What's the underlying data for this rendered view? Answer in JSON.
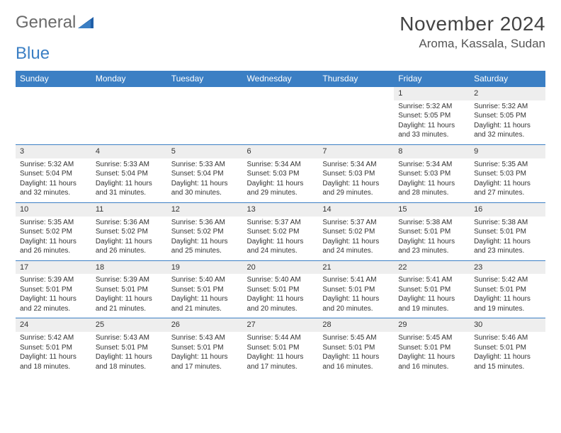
{
  "logo": {
    "word1": "General",
    "word2": "Blue"
  },
  "month_title": "November 2024",
  "location": "Aroma, Kassala, Sudan",
  "colors": {
    "header_bg": "#3b7fc4",
    "header_fg": "#ffffff",
    "daynum_bg": "#eeeeee",
    "border": "#3b7fc4",
    "text": "#333333",
    "logo_gray": "#6a6a6a",
    "logo_blue": "#3b7fc4"
  },
  "day_headers": [
    "Sunday",
    "Monday",
    "Tuesday",
    "Wednesday",
    "Thursday",
    "Friday",
    "Saturday"
  ],
  "weeks": [
    [
      {
        "n": "",
        "t": ""
      },
      {
        "n": "",
        "t": ""
      },
      {
        "n": "",
        "t": ""
      },
      {
        "n": "",
        "t": ""
      },
      {
        "n": "",
        "t": ""
      },
      {
        "n": "1",
        "t": "Sunrise: 5:32 AM\nSunset: 5:05 PM\nDaylight: 11 hours and 33 minutes."
      },
      {
        "n": "2",
        "t": "Sunrise: 5:32 AM\nSunset: 5:05 PM\nDaylight: 11 hours and 32 minutes."
      }
    ],
    [
      {
        "n": "3",
        "t": "Sunrise: 5:32 AM\nSunset: 5:04 PM\nDaylight: 11 hours and 32 minutes."
      },
      {
        "n": "4",
        "t": "Sunrise: 5:33 AM\nSunset: 5:04 PM\nDaylight: 11 hours and 31 minutes."
      },
      {
        "n": "5",
        "t": "Sunrise: 5:33 AM\nSunset: 5:04 PM\nDaylight: 11 hours and 30 minutes."
      },
      {
        "n": "6",
        "t": "Sunrise: 5:34 AM\nSunset: 5:03 PM\nDaylight: 11 hours and 29 minutes."
      },
      {
        "n": "7",
        "t": "Sunrise: 5:34 AM\nSunset: 5:03 PM\nDaylight: 11 hours and 29 minutes."
      },
      {
        "n": "8",
        "t": "Sunrise: 5:34 AM\nSunset: 5:03 PM\nDaylight: 11 hours and 28 minutes."
      },
      {
        "n": "9",
        "t": "Sunrise: 5:35 AM\nSunset: 5:03 PM\nDaylight: 11 hours and 27 minutes."
      }
    ],
    [
      {
        "n": "10",
        "t": "Sunrise: 5:35 AM\nSunset: 5:02 PM\nDaylight: 11 hours and 26 minutes."
      },
      {
        "n": "11",
        "t": "Sunrise: 5:36 AM\nSunset: 5:02 PM\nDaylight: 11 hours and 26 minutes."
      },
      {
        "n": "12",
        "t": "Sunrise: 5:36 AM\nSunset: 5:02 PM\nDaylight: 11 hours and 25 minutes."
      },
      {
        "n": "13",
        "t": "Sunrise: 5:37 AM\nSunset: 5:02 PM\nDaylight: 11 hours and 24 minutes."
      },
      {
        "n": "14",
        "t": "Sunrise: 5:37 AM\nSunset: 5:02 PM\nDaylight: 11 hours and 24 minutes."
      },
      {
        "n": "15",
        "t": "Sunrise: 5:38 AM\nSunset: 5:01 PM\nDaylight: 11 hours and 23 minutes."
      },
      {
        "n": "16",
        "t": "Sunrise: 5:38 AM\nSunset: 5:01 PM\nDaylight: 11 hours and 23 minutes."
      }
    ],
    [
      {
        "n": "17",
        "t": "Sunrise: 5:39 AM\nSunset: 5:01 PM\nDaylight: 11 hours and 22 minutes."
      },
      {
        "n": "18",
        "t": "Sunrise: 5:39 AM\nSunset: 5:01 PM\nDaylight: 11 hours and 21 minutes."
      },
      {
        "n": "19",
        "t": "Sunrise: 5:40 AM\nSunset: 5:01 PM\nDaylight: 11 hours and 21 minutes."
      },
      {
        "n": "20",
        "t": "Sunrise: 5:40 AM\nSunset: 5:01 PM\nDaylight: 11 hours and 20 minutes."
      },
      {
        "n": "21",
        "t": "Sunrise: 5:41 AM\nSunset: 5:01 PM\nDaylight: 11 hours and 20 minutes."
      },
      {
        "n": "22",
        "t": "Sunrise: 5:41 AM\nSunset: 5:01 PM\nDaylight: 11 hours and 19 minutes."
      },
      {
        "n": "23",
        "t": "Sunrise: 5:42 AM\nSunset: 5:01 PM\nDaylight: 11 hours and 19 minutes."
      }
    ],
    [
      {
        "n": "24",
        "t": "Sunrise: 5:42 AM\nSunset: 5:01 PM\nDaylight: 11 hours and 18 minutes."
      },
      {
        "n": "25",
        "t": "Sunrise: 5:43 AM\nSunset: 5:01 PM\nDaylight: 11 hours and 18 minutes."
      },
      {
        "n": "26",
        "t": "Sunrise: 5:43 AM\nSunset: 5:01 PM\nDaylight: 11 hours and 17 minutes."
      },
      {
        "n": "27",
        "t": "Sunrise: 5:44 AM\nSunset: 5:01 PM\nDaylight: 11 hours and 17 minutes."
      },
      {
        "n": "28",
        "t": "Sunrise: 5:45 AM\nSunset: 5:01 PM\nDaylight: 11 hours and 16 minutes."
      },
      {
        "n": "29",
        "t": "Sunrise: 5:45 AM\nSunset: 5:01 PM\nDaylight: 11 hours and 16 minutes."
      },
      {
        "n": "30",
        "t": "Sunrise: 5:46 AM\nSunset: 5:01 PM\nDaylight: 11 hours and 15 minutes."
      }
    ]
  ]
}
